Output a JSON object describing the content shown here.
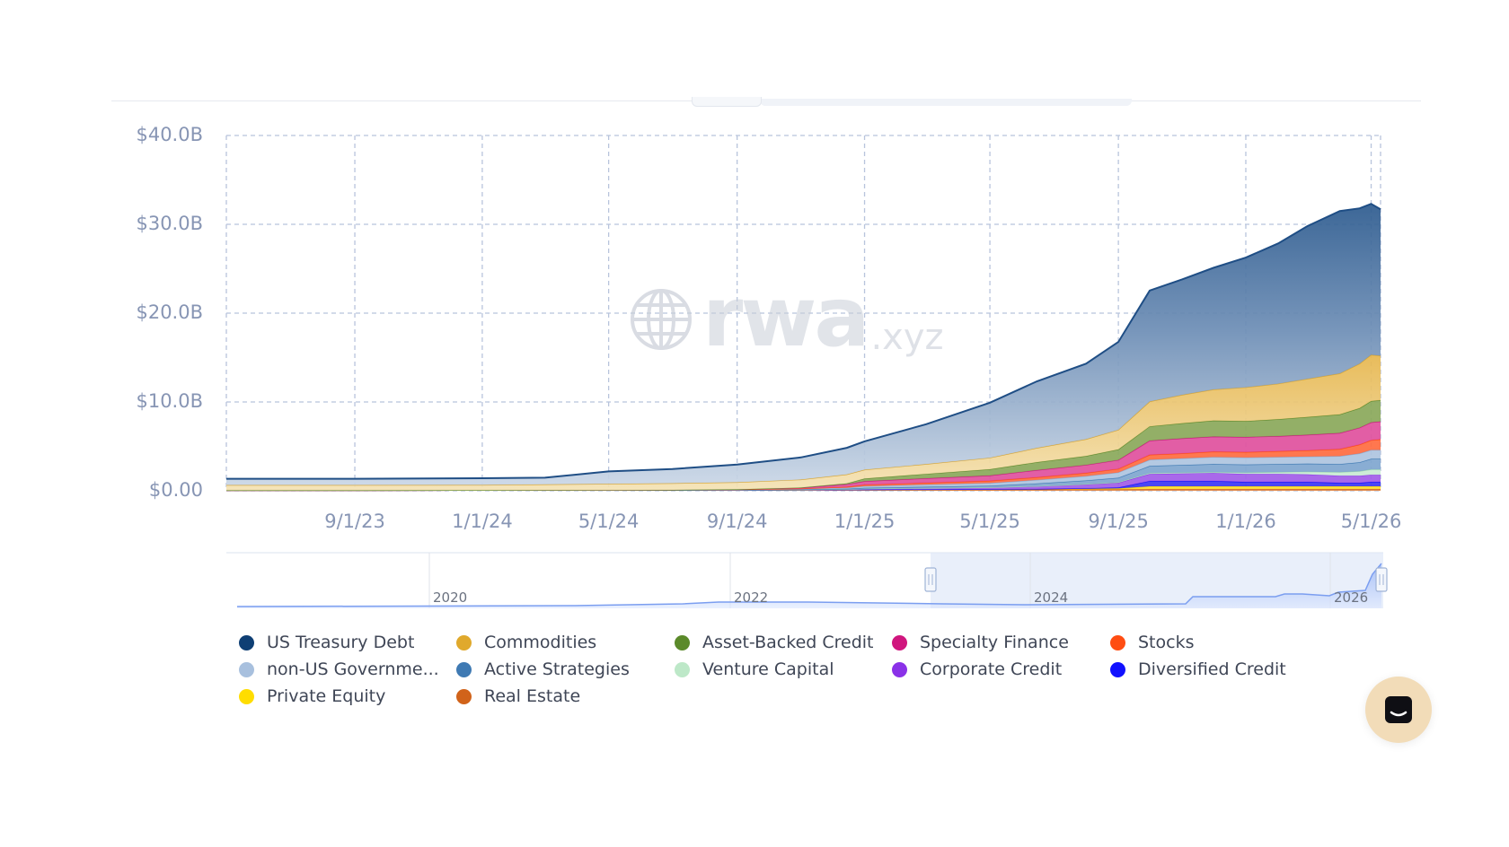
{
  "watermark": {
    "brand": "rwa",
    "suffix": ".xyz"
  },
  "colors": {
    "us_treasury": "#1f4e85",
    "commodities": "#e2b24a",
    "asset_backed": "#7a9b45",
    "specialty": "#d8268c",
    "stocks": "#ff5a2a",
    "non_us_gov": "#a9c0df",
    "active": "#4f82b8",
    "venture": "#bfe8c9",
    "corporate": "#8b3de0",
    "diversified": "#1c17f2",
    "private_equity": "#ffd600",
    "real_estate": "#d66a1f",
    "grid": "#b8c4dc",
    "axis_text": "#8795b4"
  },
  "legend": [
    {
      "label": "US Treasury Debt",
      "color": "#0f3f74"
    },
    {
      "label": "Commodities",
      "color": "#e0a92c"
    },
    {
      "label": "Asset-Backed Credit",
      "color": "#5b8a2a"
    },
    {
      "label": "Specialty Finance",
      "color": "#d0167e"
    },
    {
      "label": "Stocks",
      "color": "#ff4d12"
    },
    {
      "label": "non-US Governme...",
      "color": "#a8c0de"
    },
    {
      "label": "Active Strategies",
      "color": "#3f7ab3"
    },
    {
      "label": "Venture Capital",
      "color": "#bde8c8"
    },
    {
      "label": "Corporate Credit",
      "color": "#8a31e8"
    },
    {
      "label": "Diversified Credit",
      "color": "#1111ff"
    },
    {
      "label": "Private Equity",
      "color": "#ffdd00"
    },
    {
      "label": "Real Estate",
      "color": "#d1631a"
    }
  ],
  "navigator": {
    "labels": [
      "2020",
      "2022",
      "2024",
      "2026"
    ]
  },
  "chart_data": {
    "type": "area",
    "stacked": true,
    "title": "",
    "xlabel": "",
    "ylabel": "",
    "y_tick_labels": [
      "$0.00",
      "$10.0B",
      "$20.0B",
      "$30.0B",
      "$40.0B"
    ],
    "y_ticks": [
      0,
      10,
      20,
      30,
      40
    ],
    "ylim": [
      0,
      40
    ],
    "y_unit": "$B",
    "x_tick_labels": [
      "9/1/23",
      "1/1/24",
      "5/1/24",
      "9/1/24",
      "1/1/25",
      "5/1/25",
      "9/1/25",
      "1/1/26",
      "5/1/26"
    ],
    "x_ticks": [
      "2023-09-01",
      "2024-01-01",
      "2024-05-01",
      "2024-09-01",
      "2025-01-01",
      "2025-05-01",
      "2025-09-01",
      "2026-01-01",
      "2026-05-01"
    ],
    "xlim": [
      "2023-05-01",
      "2026-05-10"
    ],
    "grid": true,
    "legend_position": "bottom",
    "x": [
      "2023-05-01",
      "2023-09-01",
      "2024-01-01",
      "2024-03-01",
      "2024-05-01",
      "2024-07-01",
      "2024-09-01",
      "2024-11-01",
      "2024-12-15",
      "2025-01-01",
      "2025-03-01",
      "2025-05-01",
      "2025-06-15",
      "2025-08-01",
      "2025-09-01",
      "2025-10-01",
      "2025-11-01",
      "2025-12-01",
      "2026-01-01",
      "2026-02-01",
      "2026-03-01",
      "2026-04-01",
      "2026-04-20",
      "2026-05-01",
      "2026-05-10"
    ],
    "series": [
      {
        "name": "Real Estate",
        "values": [
          0.05,
          0.05,
          0.06,
          0.07,
          0.08,
          0.08,
          0.09,
          0.1,
          0.12,
          0.12,
          0.13,
          0.14,
          0.15,
          0.15,
          0.16,
          0.2,
          0.2,
          0.2,
          0.2,
          0.2,
          0.2,
          0.2,
          0.2,
          0.2,
          0.2
        ]
      },
      {
        "name": "Private Equity",
        "values": [
          0.0,
          0.0,
          0.0,
          0.0,
          0.0,
          0.0,
          0.0,
          0.0,
          0.0,
          0.0,
          0.02,
          0.03,
          0.05,
          0.08,
          0.1,
          0.3,
          0.3,
          0.3,
          0.3,
          0.3,
          0.3,
          0.3,
          0.3,
          0.3,
          0.3
        ]
      },
      {
        "name": "Diversified Credit",
        "values": [
          0.0,
          0.0,
          0.0,
          0.0,
          0.0,
          0.0,
          0.0,
          0.0,
          0.0,
          0.0,
          0.0,
          0.0,
          0.0,
          0.05,
          0.1,
          0.6,
          0.6,
          0.6,
          0.5,
          0.5,
          0.5,
          0.4,
          0.4,
          0.5,
          0.5
        ]
      },
      {
        "name": "Corporate Credit",
        "values": [
          0.0,
          0.0,
          0.0,
          0.0,
          0.0,
          0.0,
          0.0,
          0.02,
          0.05,
          0.1,
          0.15,
          0.2,
          0.3,
          0.45,
          0.55,
          0.8,
          0.85,
          0.9,
          0.9,
          0.9,
          0.85,
          0.8,
          0.8,
          0.8,
          0.8
        ]
      },
      {
        "name": "Venture Capital",
        "values": [
          0.0,
          0.0,
          0.0,
          0.0,
          0.0,
          0.0,
          0.0,
          0.0,
          0.0,
          0.0,
          0.0,
          0.0,
          0.02,
          0.03,
          0.05,
          0.1,
          0.1,
          0.1,
          0.15,
          0.2,
          0.3,
          0.4,
          0.5,
          0.6,
          0.6
        ]
      },
      {
        "name": "Active Strategies",
        "values": [
          0.0,
          0.0,
          0.0,
          0.0,
          0.0,
          0.0,
          0.0,
          0.02,
          0.05,
          0.1,
          0.15,
          0.2,
          0.3,
          0.4,
          0.5,
          0.8,
          0.85,
          0.9,
          0.9,
          0.9,
          0.9,
          0.9,
          1.0,
          1.2,
          1.2
        ]
      },
      {
        "name": "non-US Government Debt",
        "values": [
          0.0,
          0.0,
          0.0,
          0.0,
          0.0,
          0.02,
          0.05,
          0.08,
          0.12,
          0.2,
          0.25,
          0.3,
          0.4,
          0.5,
          0.6,
          0.7,
          0.75,
          0.8,
          0.8,
          0.8,
          0.8,
          0.9,
          1.0,
          1.0,
          1.0
        ]
      },
      {
        "name": "Stocks",
        "values": [
          0.0,
          0.0,
          0.0,
          0.0,
          0.0,
          0.0,
          0.0,
          0.02,
          0.1,
          0.15,
          0.2,
          0.25,
          0.3,
          0.35,
          0.4,
          0.55,
          0.55,
          0.6,
          0.6,
          0.65,
          0.7,
          0.8,
          1.0,
          1.1,
          1.2
        ]
      },
      {
        "name": "Specialty Finance",
        "values": [
          0.0,
          0.0,
          0.0,
          0.0,
          0.0,
          0.0,
          0.02,
          0.1,
          0.3,
          0.4,
          0.5,
          0.6,
          0.8,
          0.9,
          1.0,
          1.6,
          1.7,
          1.7,
          1.7,
          1.7,
          1.75,
          1.8,
          1.9,
          2.0,
          2.0
        ]
      },
      {
        "name": "Asset-Backed Credit",
        "values": [
          0.0,
          0.0,
          0.0,
          0.0,
          0.0,
          0.0,
          0.0,
          0.02,
          0.1,
          0.3,
          0.5,
          0.7,
          0.9,
          1.0,
          1.2,
          1.6,
          1.7,
          1.8,
          1.8,
          1.9,
          2.0,
          2.1,
          2.2,
          2.4,
          2.4
        ]
      },
      {
        "name": "Commodities",
        "values": [
          0.6,
          0.6,
          0.6,
          0.65,
          0.7,
          0.75,
          0.8,
          0.9,
          1.0,
          1.0,
          1.1,
          1.3,
          1.6,
          1.9,
          2.2,
          2.8,
          3.2,
          3.5,
          3.8,
          4.0,
          4.3,
          4.6,
          5.0,
          5.2,
          5.0
        ]
      },
      {
        "name": "US Treasury Debt",
        "values": [
          0.7,
          0.7,
          0.75,
          0.75,
          1.4,
          1.6,
          2.0,
          2.5,
          3.0,
          3.2,
          4.5,
          6.2,
          7.5,
          8.5,
          9.9,
          12.5,
          13.0,
          13.7,
          14.6,
          15.8,
          17.2,
          18.3,
          17.5,
          17.0,
          16.5
        ]
      }
    ],
    "navigator_x_tick_labels": [
      "2020",
      "2022",
      "2024",
      "2026"
    ]
  }
}
